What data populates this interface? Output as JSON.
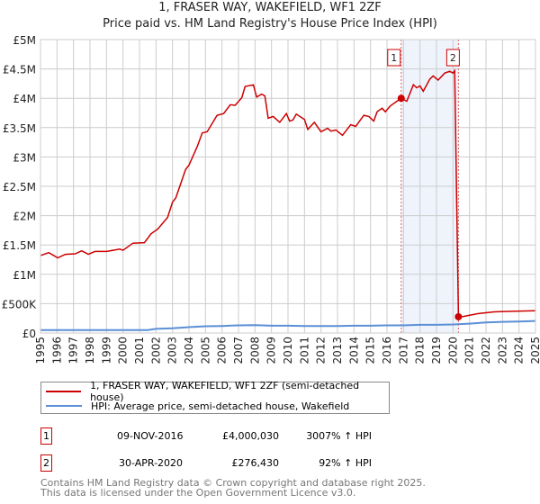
{
  "chart_data": {
    "type": "line",
    "title": "1, FRASER WAY, WAKEFIELD, WF1 2ZF",
    "subtitle": "Price paid vs. HM Land Registry's House Price Index (HPI)",
    "xlabel": "",
    "ylabel": "",
    "xlim": [
      1995,
      2025
    ],
    "ylim": [
      0,
      5000000
    ],
    "grid": true,
    "y_ticks": [
      0,
      500000,
      1000000,
      1500000,
      2000000,
      2500000,
      3000000,
      3500000,
      4000000,
      4500000,
      5000000
    ],
    "y_tick_labels": [
      "£0",
      "£500K",
      "£1M",
      "£1.5M",
      "£2M",
      "£2.5M",
      "£3M",
      "£3.5M",
      "£4M",
      "£4.5M",
      "£5M"
    ],
    "x_ticks": [
      1995,
      1996,
      1997,
      1998,
      1999,
      2000,
      2001,
      2002,
      2003,
      2004,
      2005,
      2006,
      2007,
      2008,
      2009,
      2010,
      2011,
      2012,
      2013,
      2014,
      2015,
      2016,
      2017,
      2018,
      2019,
      2020,
      2021,
      2022,
      2023,
      2024,
      2025
    ],
    "series": [
      {
        "name": "1, FRASER WAY, WAKEFIELD, WF1 2ZF (semi-detached house)",
        "color": "#cc0000",
        "points": [
          [
            1995,
            1.32
          ],
          [
            1995.5,
            1.37
          ],
          [
            1996.05,
            1.28
          ],
          [
            1996.5,
            1.34
          ],
          [
            1997.1,
            1.35
          ],
          [
            1997.5,
            1.4
          ],
          [
            1997.9,
            1.34
          ],
          [
            1998.3,
            1.39
          ],
          [
            1999,
            1.39
          ],
          [
            1999.8,
            1.43
          ],
          [
            2000,
            1.41
          ],
          [
            2000.6,
            1.53
          ],
          [
            2001.3,
            1.54
          ],
          [
            2001.7,
            1.69
          ],
          [
            2002.1,
            1.77
          ],
          [
            2002.7,
            1.97
          ],
          [
            2003,
            2.23
          ],
          [
            2003.2,
            2.3
          ],
          [
            2003.8,
            2.79
          ],
          [
            2004,
            2.86
          ],
          [
            2004.5,
            3.18
          ],
          [
            2004.8,
            3.41
          ],
          [
            2005.1,
            3.43
          ],
          [
            2005.7,
            3.71
          ],
          [
            2006.1,
            3.74
          ],
          [
            2006.5,
            3.89
          ],
          [
            2006.8,
            3.88
          ],
          [
            2007.2,
            4.01
          ],
          [
            2007.4,
            4.2
          ],
          [
            2007.9,
            4.23
          ],
          [
            2008.1,
            4.02
          ],
          [
            2008.4,
            4.07
          ],
          [
            2008.6,
            4.04
          ],
          [
            2008.8,
            3.66
          ],
          [
            2009.1,
            3.69
          ],
          [
            2009.5,
            3.59
          ],
          [
            2009.9,
            3.74
          ],
          [
            2010.1,
            3.61
          ],
          [
            2010.3,
            3.63
          ],
          [
            2010.5,
            3.73
          ],
          [
            2011,
            3.64
          ],
          [
            2011.2,
            3.47
          ],
          [
            2011.6,
            3.59
          ],
          [
            2012,
            3.43
          ],
          [
            2012.4,
            3.49
          ],
          [
            2012.6,
            3.44
          ],
          [
            2012.9,
            3.46
          ],
          [
            2013.3,
            3.37
          ],
          [
            2013.5,
            3.44
          ],
          [
            2013.8,
            3.55
          ],
          [
            2014.1,
            3.52
          ],
          [
            2014.6,
            3.71
          ],
          [
            2014.9,
            3.69
          ],
          [
            2015.2,
            3.61
          ],
          [
            2015.4,
            3.77
          ],
          [
            2015.7,
            3.83
          ],
          [
            2015.9,
            3.77
          ],
          [
            2016.2,
            3.87
          ],
          [
            2016.6,
            3.95
          ],
          [
            2016.86,
            4.0
          ],
          [
            2017.2,
            3.95
          ],
          [
            2017.6,
            4.23
          ],
          [
            2017.8,
            4.18
          ],
          [
            2018.0,
            4.21
          ],
          [
            2018.2,
            4.12
          ],
          [
            2018.6,
            4.33
          ],
          [
            2018.8,
            4.38
          ],
          [
            2019.1,
            4.31
          ],
          [
            2019.5,
            4.43
          ],
          [
            2019.8,
            4.46
          ],
          [
            2020.0,
            4.43
          ],
          [
            2020.1,
            4.47
          ],
          [
            2020.33,
            0.276
          ],
          [
            2020.6,
            0.28
          ],
          [
            2021.5,
            0.33
          ],
          [
            2022.5,
            0.36
          ],
          [
            2023.6,
            0.37
          ],
          [
            2025,
            0.38
          ]
        ],
        "unit": "millions GBP"
      },
      {
        "name": "HPI: Average price, semi-detached house, Wakefield",
        "color": "#5b8fd6",
        "points": [
          [
            1995,
            0.05
          ],
          [
            2001.5,
            0.05
          ],
          [
            2002,
            0.07
          ],
          [
            2003,
            0.08
          ],
          [
            2004,
            0.1
          ],
          [
            2005,
            0.115
          ],
          [
            2006,
            0.12
          ],
          [
            2007,
            0.13
          ],
          [
            2008,
            0.135
          ],
          [
            2009,
            0.125
          ],
          [
            2010,
            0.125
          ],
          [
            2011,
            0.12
          ],
          [
            2012,
            0.12
          ],
          [
            2013,
            0.12
          ],
          [
            2014,
            0.125
          ],
          [
            2015,
            0.125
          ],
          [
            2016,
            0.13
          ],
          [
            2017,
            0.13
          ],
          [
            2018,
            0.14
          ],
          [
            2019,
            0.14
          ],
          [
            2020,
            0.145
          ],
          [
            2021,
            0.16
          ],
          [
            2022,
            0.18
          ],
          [
            2023,
            0.19
          ],
          [
            2024,
            0.195
          ],
          [
            2025,
            0.205
          ]
        ],
        "unit": "millions GBP"
      }
    ],
    "annotations": [
      {
        "label": "1",
        "x": 2016.86,
        "y": 4.00003
      },
      {
        "label": "2",
        "x": 2020.33,
        "y": 0.27643
      }
    ],
    "shaded_region": [
      2016.86,
      2020.33
    ],
    "legend_placement": "bottom"
  },
  "legend": {
    "items": [
      {
        "label": "1, FRASER WAY, WAKEFIELD, WF1 2ZF (semi-detached house)",
        "color": "#cc0000"
      },
      {
        "label": "HPI: Average price, semi-detached house, Wakefield",
        "color": "#5b8fd6"
      }
    ]
  },
  "sales": [
    {
      "num": "1",
      "date": "09-NOV-2016",
      "price": "£4,000,030",
      "hpi": "3007% ↑ HPI"
    },
    {
      "num": "2",
      "date": "30-APR-2020",
      "price": "£276,430",
      "hpi": "92% ↑ HPI"
    }
  ],
  "footer": {
    "line1": "Contains HM Land Registry data © Crown copyright and database right 2025.",
    "line2": "This data is licensed under the Open Government Licence v3.0."
  }
}
